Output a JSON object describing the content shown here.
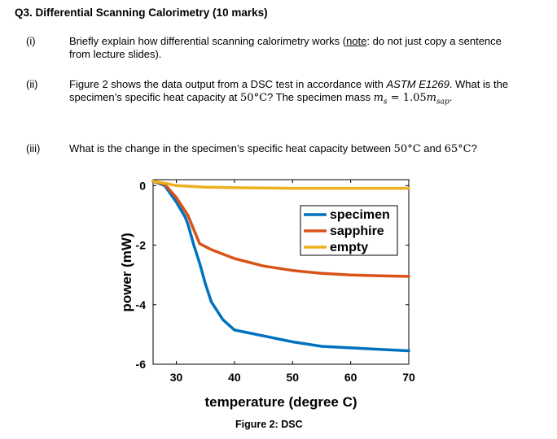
{
  "question": {
    "title": "Q3. Differential Scanning Calorimetry (10 marks)",
    "parts": [
      {
        "number": "(i)",
        "text_a": "Briefly explain how differential scanning calorimetry works (",
        "note": "note",
        "text_b": ": do not just copy a sentence from lecture slides)."
      },
      {
        "number": "(ii)",
        "text_a": "Figure 2 shows the data output from a DSC test in accordance with ",
        "standard": "ASTM E1269",
        "text_b": ". What is the specimen’s specific heat capacity at ",
        "temp": "50°C",
        "text_c": "? The specimen mass ",
        "mass_symbol": "m",
        "mass_sub": "s",
        "mass_eq": " = 1.05",
        "mass_unit": "m",
        "mass_unit_sub": "sap",
        "text_d": "."
      },
      {
        "number": "(iii)",
        "text_a": "What is the change in the specimen’s specific heat capacity between ",
        "temp1": "50°C",
        "text_b": " and ",
        "temp2": "65°C",
        "text_c": "?"
      }
    ]
  },
  "figure_caption": "Figure 2: DSC",
  "chart_data": {
    "type": "line",
    "xlabel": "temperature (degree C)",
    "ylabel": "power (mW)",
    "xlim": [
      26,
      70
    ],
    "ylim": [
      -6,
      0.2
    ],
    "x_ticks": [
      30,
      40,
      50,
      60,
      70
    ],
    "y_ticks": [
      0,
      -2,
      -4,
      -6
    ],
    "legend_position": "upper-right",
    "series": [
      {
        "name": "specimen",
        "color": "#0072BD",
        "x": [
          26,
          28,
          30,
          31.5,
          32,
          33,
          34,
          35,
          36,
          38,
          40,
          45,
          50,
          55,
          60,
          65,
          70
        ],
        "y": [
          0.15,
          0.0,
          -0.55,
          -1.05,
          -1.3,
          -2.0,
          -2.6,
          -3.3,
          -3.9,
          -4.5,
          -4.85,
          -5.05,
          -5.25,
          -5.4,
          -5.45,
          -5.5,
          -5.55
        ]
      },
      {
        "name": "sapphire",
        "color": "#D95319",
        "x": [
          26,
          28,
          30,
          32,
          34,
          36,
          40,
          45,
          50,
          55,
          60,
          65,
          70
        ],
        "y": [
          0.15,
          0.05,
          -0.4,
          -1.0,
          -1.95,
          -2.15,
          -2.45,
          -2.7,
          -2.85,
          -2.95,
          -3.0,
          -3.03,
          -3.05
        ]
      },
      {
        "name": "empty",
        "color": "#EDB120",
        "x": [
          26,
          28,
          30,
          35,
          40,
          50,
          60,
          70
        ],
        "y": [
          0.15,
          0.08,
          0.0,
          -0.05,
          -0.07,
          -0.09,
          -0.09,
          -0.09
        ]
      }
    ]
  }
}
